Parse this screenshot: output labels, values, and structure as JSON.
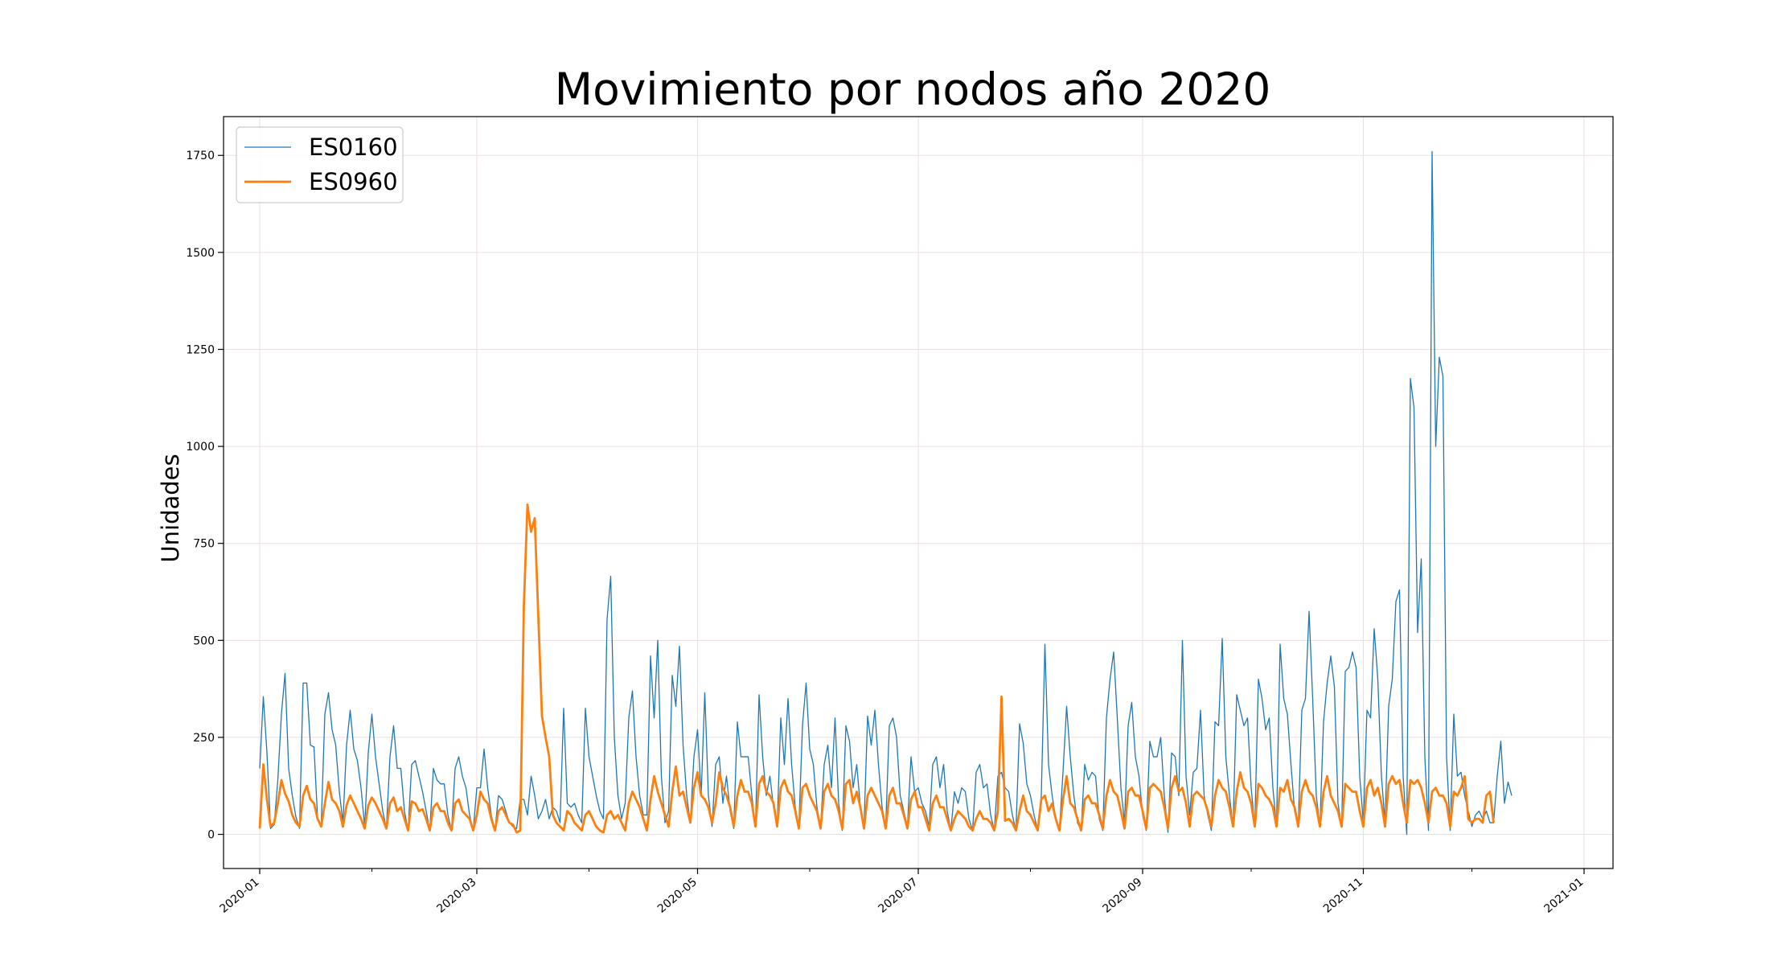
{
  "chart_data": {
    "type": "line",
    "title": "Movimiento por nodos año 2020",
    "ylabel": "Unidades",
    "xlabel": "",
    "xlim": [
      "2019-12-22",
      "2021-01-09"
    ],
    "ylim": [
      -88,
      1850
    ],
    "grid": true,
    "legend_position": "top-left",
    "x_ticks": [
      "2020-01-01",
      "2020-03-01",
      "2020-05-01",
      "2020-07-01",
      "2020-09-01",
      "2020-11-01",
      "2021-01-01"
    ],
    "x_tick_labels": [
      "2020-01",
      "2020-03",
      "2020-05",
      "2020-07",
      "2020-09",
      "2020-11",
      "2021-01"
    ],
    "y_ticks": [
      0,
      250,
      500,
      750,
      1000,
      1250,
      1500,
      1750
    ],
    "y_tick_labels": [
      "0",
      "250",
      "500",
      "750",
      "1000",
      "1250",
      "1500",
      "1750"
    ],
    "start_date": "2020-01-01",
    "series": [
      {
        "name": "ES0160",
        "color": "#1f77b4",
        "values": [
          170,
          355,
          210,
          15,
          25,
          140,
          310,
          415,
          170,
          100,
          45,
          15,
          390,
          390,
          230,
          225,
          40,
          25,
          310,
          365,
          270,
          230,
          110,
          30,
          230,
          320,
          220,
          190,
          120,
          20,
          210,
          310,
          200,
          130,
          60,
          15,
          200,
          280,
          170,
          170,
          60,
          10,
          180,
          190,
          150,
          110,
          60,
          10,
          170,
          140,
          130,
          130,
          50,
          10,
          170,
          200,
          150,
          120,
          50,
          10,
          120,
          120,
          220,
          120,
          50,
          10,
          100,
          90,
          60,
          30,
          20,
          15,
          90,
          90,
          50,
          150,
          100,
          40,
          60,
          90,
          40,
          70,
          60,
          30,
          325,
          80,
          70,
          80,
          50,
          30,
          325,
          200,
          150,
          100,
          60,
          40,
          555,
          665,
          250,
          100,
          40,
          80,
          300,
          370,
          200,
          100,
          50,
          50,
          460,
          300,
          500,
          150,
          30,
          60,
          410,
          330,
          485,
          230,
          100,
          30,
          200,
          270,
          100,
          365,
          100,
          20,
          180,
          200,
          80,
          150,
          60,
          15,
          290,
          200,
          200,
          200,
          100,
          20,
          360,
          200,
          100,
          150,
          70,
          20,
          300,
          180,
          350,
          180,
          70,
          20,
          280,
          390,
          220,
          180,
          70,
          20,
          180,
          230,
          120,
          300,
          80,
          10,
          280,
          240,
          120,
          180,
          70,
          20,
          305,
          230,
          320,
          180,
          70,
          20,
          280,
          300,
          250,
          100,
          60,
          20,
          200,
          110,
          120,
          80,
          60,
          20,
          180,
          200,
          120,
          180,
          60,
          10,
          110,
          80,
          120,
          110,
          40,
          10,
          160,
          180,
          120,
          130,
          50,
          10,
          150,
          160,
          120,
          110,
          50,
          10,
          285,
          235,
          130,
          100,
          50,
          10,
          100,
          490,
          180,
          100,
          40,
          10,
          160,
          330,
          200,
          100,
          30,
          10,
          180,
          140,
          160,
          150,
          40,
          10,
          300,
          400,
          470,
          300,
          120,
          30,
          280,
          340,
          200,
          150,
          50,
          10,
          240,
          200,
          200,
          250,
          100,
          5,
          210,
          200,
          100,
          500,
          150,
          50,
          160,
          170,
          320,
          100,
          50,
          10,
          290,
          280,
          505,
          200,
          100,
          20,
          360,
          320,
          280,
          300,
          120,
          20,
          400,
          350,
          270,
          300,
          120,
          20,
          490,
          350,
          310,
          180,
          60,
          20,
          320,
          350,
          575,
          350,
          100,
          20,
          290,
          390,
          460,
          380,
          80,
          20,
          420,
          430,
          470,
          430,
          150,
          30,
          320,
          300,
          530,
          400,
          150,
          30,
          330,
          400,
          600,
          630,
          150,
          0,
          1175,
          1100,
          520,
          710,
          200,
          10,
          1760,
          1000,
          1230,
          1180,
          200,
          10,
          310,
          150,
          160,
          100,
          60,
          20,
          50,
          60,
          40,
          60,
          30,
          30,
          150,
          240,
          80,
          135,
          100
        ]
      },
      {
        "name": "ES0960",
        "color": "#ff7f0e",
        "values": [
          15,
          180,
          90,
          20,
          30,
          80,
          140,
          105,
          85,
          50,
          30,
          20,
          100,
          125,
          90,
          80,
          40,
          20,
          80,
          135,
          90,
          80,
          60,
          20,
          75,
          100,
          80,
          60,
          40,
          15,
          75,
          95,
          80,
          60,
          40,
          15,
          80,
          95,
          60,
          70,
          40,
          10,
          85,
          80,
          60,
          65,
          40,
          10,
          70,
          80,
          60,
          60,
          30,
          10,
          80,
          90,
          60,
          50,
          40,
          10,
          50,
          110,
          90,
          80,
          40,
          10,
          60,
          70,
          50,
          30,
          25,
          5,
          10,
          590,
          850,
          780,
          815,
          560,
          305,
          250,
          200,
          50,
          30,
          20,
          10,
          60,
          50,
          30,
          20,
          10,
          50,
          60,
          40,
          20,
          10,
          5,
          50,
          60,
          40,
          50,
          30,
          10,
          80,
          110,
          90,
          70,
          40,
          10,
          90,
          150,
          110,
          80,
          50,
          20,
          110,
          175,
          100,
          110,
          70,
          30,
          120,
          160,
          100,
          90,
          70,
          30,
          80,
          160,
          120,
          100,
          70,
          20,
          100,
          140,
          110,
          110,
          80,
          20,
          130,
          150,
          110,
          100,
          80,
          20,
          120,
          140,
          110,
          100,
          60,
          15,
          120,
          130,
          100,
          80,
          60,
          15,
          110,
          130,
          100,
          90,
          60,
          15,
          130,
          140,
          80,
          110,
          70,
          15,
          100,
          120,
          100,
          80,
          60,
          15,
          100,
          120,
          80,
          80,
          50,
          15,
          90,
          110,
          70,
          70,
          40,
          10,
          80,
          100,
          70,
          70,
          40,
          10,
          40,
          60,
          50,
          40,
          20,
          10,
          40,
          60,
          40,
          40,
          30,
          10,
          60,
          355,
          35,
          40,
          30,
          10,
          60,
          100,
          60,
          50,
          30,
          10,
          90,
          100,
          60,
          80,
          40,
          10,
          90,
          150,
          80,
          70,
          40,
          10,
          90,
          100,
          80,
          80,
          50,
          15,
          100,
          140,
          110,
          100,
          60,
          15,
          110,
          120,
          100,
          100,
          60,
          15,
          120,
          130,
          120,
          110,
          70,
          15,
          120,
          150,
          110,
          120,
          80,
          20,
          100,
          110,
          100,
          90,
          60,
          20,
          100,
          140,
          120,
          110,
          70,
          20,
          110,
          160,
          120,
          110,
          80,
          20,
          130,
          120,
          100,
          90,
          70,
          20,
          120,
          110,
          140,
          90,
          70,
          20,
          110,
          140,
          110,
          100,
          70,
          20,
          110,
          150,
          100,
          80,
          60,
          20,
          130,
          120,
          110,
          110,
          60,
          20,
          120,
          140,
          100,
          120,
          80,
          20,
          130,
          150,
          130,
          140,
          80,
          30,
          140,
          130,
          140,
          120,
          80,
          30,
          110,
          120,
          100,
          100,
          80,
          20,
          110,
          100,
          120,
          150,
          40,
          30,
          40,
          40,
          30,
          100,
          110,
          30
        ]
      }
    ]
  }
}
